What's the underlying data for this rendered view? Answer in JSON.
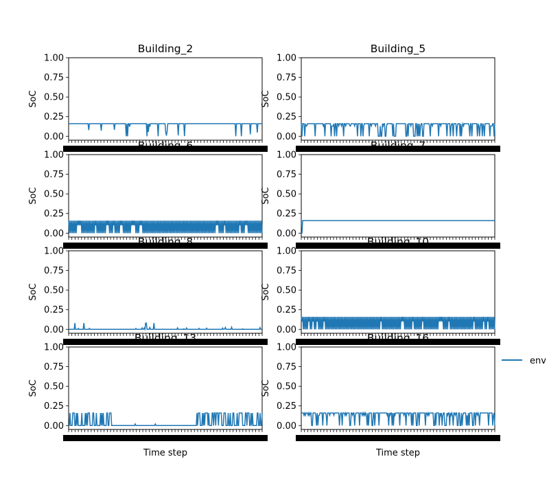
{
  "legend": {
    "label": "env",
    "color": "#1f77b4",
    "placement": "right"
  },
  "xlabel": "Time step",
  "ylabel": "SoC",
  "chart_data": [
    {
      "type": "line",
      "title": "Building_2",
      "ylabel": "SoC",
      "xlabel": "",
      "ylim": [
        -0.05,
        1.0
      ],
      "yticks": [
        "0.00",
        "0.25",
        "0.50",
        "0.75",
        "1.00"
      ],
      "series": [
        {
          "name": "env",
          "baseline": 0.16,
          "low": 0.0,
          "pattern": "sparse-dips"
        }
      ]
    },
    {
      "type": "line",
      "title": "Building_5",
      "ylabel": "SoC",
      "xlabel": "",
      "ylim": [
        -0.05,
        1.0
      ],
      "yticks": [
        "0.00",
        "0.25",
        "0.50",
        "0.75",
        "1.00"
      ],
      "series": [
        {
          "name": "env",
          "baseline": 0.16,
          "low": 0.0,
          "pattern": "frequent-dips"
        }
      ]
    },
    {
      "type": "line",
      "title": "Building_6",
      "ylabel": "SoC",
      "xlabel": "",
      "ylim": [
        -0.05,
        1.0
      ],
      "yticks": [
        "0.00",
        "0.25",
        "0.50",
        "0.75",
        "1.00"
      ],
      "series": [
        {
          "name": "env",
          "baseline": 0.16,
          "low": 0.0,
          "pattern": "dense-oscillation"
        }
      ]
    },
    {
      "type": "line",
      "title": "Building_7",
      "ylabel": "SoC",
      "xlabel": "",
      "ylim": [
        -0.05,
        1.0
      ],
      "yticks": [
        "0.00",
        "0.25",
        "0.50",
        "0.75",
        "1.00"
      ],
      "series": [
        {
          "name": "env",
          "baseline": 0.16,
          "low": 0.0,
          "pattern": "flat"
        }
      ]
    },
    {
      "type": "line",
      "title": "Building_8",
      "ylabel": "SoC",
      "xlabel": "",
      "ylim": [
        -0.05,
        1.0
      ],
      "yticks": [
        "0.00",
        "0.25",
        "0.50",
        "0.75",
        "1.00"
      ],
      "series": [
        {
          "name": "env",
          "baseline": 0.0,
          "low": 0.0,
          "peak": 0.08,
          "pattern": "small-spikes"
        }
      ]
    },
    {
      "type": "line",
      "title": "Building_10",
      "ylabel": "SoC",
      "xlabel": "",
      "ylim": [
        -0.05,
        1.0
      ],
      "yticks": [
        "0.00",
        "0.25",
        "0.50",
        "0.75",
        "1.00"
      ],
      "series": [
        {
          "name": "env",
          "baseline": 0.16,
          "low": 0.0,
          "pattern": "dense-oscillation"
        }
      ]
    },
    {
      "type": "line",
      "title": "Building_13",
      "ylabel": "SoC",
      "xlabel": "",
      "ylim": [
        -0.05,
        1.0
      ],
      "yticks": [
        "0.00",
        "0.25",
        "0.50",
        "0.75",
        "1.00"
      ],
      "series": [
        {
          "name": "env",
          "baseline": 0.0,
          "low": 0.0,
          "peak": 0.16,
          "pattern": "bursts-start-end"
        }
      ]
    },
    {
      "type": "line",
      "title": "Building_16",
      "ylabel": "SoC",
      "xlabel": "Time step",
      "ylim": [
        -0.05,
        1.0
      ],
      "yticks": [
        "0.00",
        "0.25",
        "0.50",
        "0.75",
        "1.00"
      ],
      "series": [
        {
          "name": "env",
          "baseline": 0.16,
          "low": 0.0,
          "pattern": "frequent-dips"
        }
      ]
    }
  ]
}
